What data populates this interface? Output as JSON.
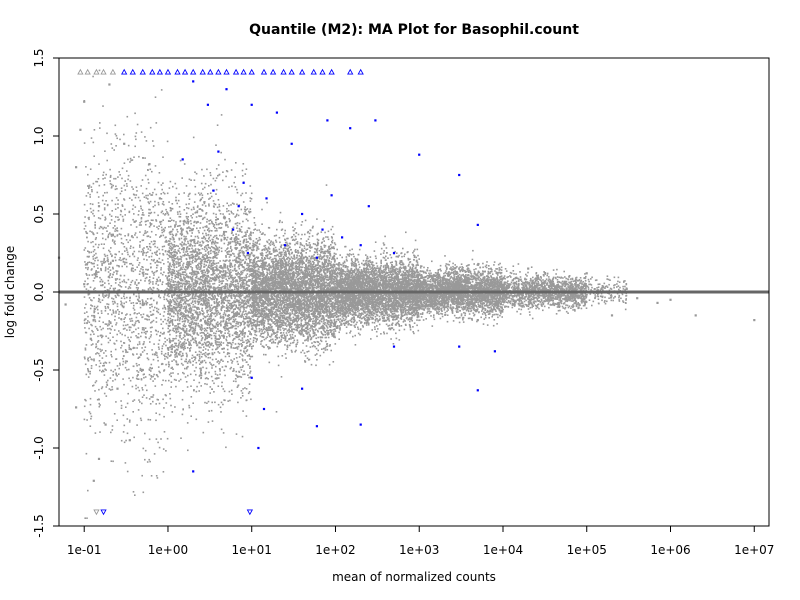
{
  "chart_data": {
    "type": "scatter",
    "title": "Quantile (M2): MA Plot for Basophil.count",
    "xlabel": "mean of normalized counts",
    "ylabel": "log fold change",
    "x_scale": "log10",
    "xlim": [
      0.05,
      15000000
    ],
    "ylim": [
      -1.5,
      1.5
    ],
    "x_ticks": [
      {
        "value": 0.1,
        "label": "1e-01"
      },
      {
        "value": 1,
        "label": "1e+00"
      },
      {
        "value": 10,
        "label": "1e+01"
      },
      {
        "value": 100,
        "label": "1e+02"
      },
      {
        "value": 1000,
        "label": "1e+03"
      },
      {
        "value": 10000,
        "label": "1e+04"
      },
      {
        "value": 100000,
        "label": "1e+05"
      },
      {
        "value": 1000000,
        "label": "1e+06"
      },
      {
        "value": 10000000,
        "label": "1e+07"
      }
    ],
    "y_ticks": [
      {
        "value": -1.5,
        "label": "-1.5"
      },
      {
        "value": -1.0,
        "label": "-1.0"
      },
      {
        "value": -0.5,
        "label": "-0.5"
      },
      {
        "value": 0.0,
        "label": "0.0"
      },
      {
        "value": 0.5,
        "label": "0.5"
      },
      {
        "value": 1.0,
        "label": "1.0"
      },
      {
        "value": 1.5,
        "label": "1.5"
      }
    ],
    "reference_line": {
      "y": 0,
      "color": "#666666"
    },
    "colors": {
      "not_significant": "#999999",
      "significant": "#0000ff"
    },
    "out_of_range_marker": "open triangles at y-limits",
    "grid": false,
    "legend": "none",
    "series": [
      {
        "significance": "not_significant",
        "marker": "point",
        "points": [
          [
            0.05,
            0.22
          ],
          [
            0.06,
            -0.08
          ],
          [
            0.08,
            0.8
          ],
          [
            0.08,
            -0.74
          ],
          [
            0.09,
            1.04
          ],
          [
            0.1,
            1.22
          ],
          [
            0.1,
            0.05
          ],
          [
            0.12,
            -0.3
          ],
          [
            0.13,
            -1.21
          ],
          [
            0.15,
            0.55
          ],
          [
            0.15,
            -1.07
          ],
          [
            0.18,
            -0.85
          ],
          [
            0.2,
            1.33
          ],
          [
            0.22,
            0.2
          ],
          [
            0.25,
            -0.62
          ],
          [
            0.3,
            0.95
          ],
          [
            0.35,
            -0.95
          ],
          [
            0.4,
            0.45
          ],
          [
            0.5,
            -0.5
          ],
          [
            0.6,
            0.82
          ],
          [
            0.7,
            -0.4
          ],
          [
            0.8,
            0.6
          ],
          [
            1.0,
            -0.36
          ],
          [
            1.5,
            0.4
          ],
          [
            2.0,
            -0.3
          ],
          [
            3.0,
            0.3
          ],
          [
            5.0,
            -0.2
          ],
          [
            8.0,
            0.25
          ],
          [
            15,
            -0.15
          ],
          [
            30,
            0.18
          ],
          [
            60,
            -0.12
          ],
          [
            150,
            0.12
          ],
          [
            300,
            -0.1
          ],
          [
            800,
            0.08
          ],
          [
            2000,
            -0.07
          ],
          [
            6000,
            0.06
          ],
          [
            15000,
            -0.05
          ],
          [
            40000,
            0.04
          ],
          [
            80000,
            -0.1
          ],
          [
            150000,
            0.02
          ],
          [
            400000,
            -0.04
          ],
          [
            1000000,
            -0.05
          ],
          [
            2000000,
            -0.15
          ],
          [
            10000000,
            -0.18
          ],
          [
            700000,
            -0.07
          ],
          [
            300000,
            0.02
          ],
          [
            200000,
            -0.15
          ],
          [
            100000,
            0.12
          ],
          [
            20000,
            0.15
          ],
          [
            5000,
            -0.18
          ]
        ]
      },
      {
        "significance": "significant",
        "marker": "point",
        "points": [
          [
            2.0,
            1.35
          ],
          [
            3.0,
            1.2
          ],
          [
            5.0,
            1.3
          ],
          [
            10,
            1.2
          ],
          [
            20,
            1.15
          ],
          [
            30,
            0.95
          ],
          [
            80,
            1.1
          ],
          [
            150,
            1.05
          ],
          [
            300,
            1.1
          ],
          [
            1000,
            0.88
          ],
          [
            3000,
            0.75
          ],
          [
            5000,
            0.43
          ],
          [
            4.0,
            0.9
          ],
          [
            8.0,
            0.7
          ],
          [
            15,
            0.6
          ],
          [
            40,
            0.5
          ],
          [
            70,
            0.4
          ],
          [
            120,
            0.35
          ],
          [
            200,
            0.3
          ],
          [
            500,
            0.25
          ],
          [
            7.0,
            0.55
          ],
          [
            25,
            0.3
          ],
          [
            60,
            0.22
          ],
          [
            10,
            -0.55
          ],
          [
            40,
            -0.62
          ],
          [
            60,
            -0.86
          ],
          [
            200,
            -0.85
          ],
          [
            500,
            -0.35
          ],
          [
            3000,
            -0.35
          ],
          [
            8000,
            -0.38
          ],
          [
            14,
            -0.75
          ],
          [
            12,
            -1.0
          ],
          [
            2.0,
            -1.15
          ],
          [
            5000,
            -0.63
          ],
          [
            1.5,
            0.85
          ],
          [
            3.5,
            0.65
          ],
          [
            6.0,
            0.4
          ],
          [
            9.0,
            0.25
          ],
          [
            90,
            0.62
          ],
          [
            250,
            0.55
          ]
        ]
      },
      {
        "significance": "not_significant",
        "marker": "triangle_up_at_ylim",
        "points": [
          [
            0.09,
            1.5
          ],
          [
            0.11,
            1.5
          ],
          [
            0.14,
            1.5
          ],
          [
            0.17,
            1.5
          ],
          [
            0.22,
            1.5
          ]
        ]
      },
      {
        "significance": "significant",
        "marker": "triangle_up_at_ylim",
        "points": [
          [
            0.3,
            1.5
          ],
          [
            0.38,
            1.5
          ],
          [
            0.5,
            1.5
          ],
          [
            0.65,
            1.5
          ],
          [
            0.8,
            1.5
          ],
          [
            1.0,
            1.5
          ],
          [
            1.3,
            1.5
          ],
          [
            1.6,
            1.5
          ],
          [
            2.0,
            1.5
          ],
          [
            2.6,
            1.5
          ],
          [
            3.2,
            1.5
          ],
          [
            4.0,
            1.5
          ],
          [
            5.0,
            1.5
          ],
          [
            6.5,
            1.5
          ],
          [
            8.0,
            1.5
          ],
          [
            10,
            1.5
          ],
          [
            14,
            1.5
          ],
          [
            18,
            1.5
          ],
          [
            24,
            1.5
          ],
          [
            30,
            1.5
          ],
          [
            40,
            1.5
          ],
          [
            55,
            1.5
          ],
          [
            70,
            1.5
          ],
          [
            90,
            1.5
          ],
          [
            150,
            1.5
          ],
          [
            200,
            1.5
          ]
        ]
      },
      {
        "significance": "not_significant",
        "marker": "triangle_down_at_ylim",
        "points": [
          [
            0.14,
            -1.5
          ]
        ]
      },
      {
        "significance": "significant",
        "marker": "triangle_down_at_ylim",
        "points": [
          [
            0.17,
            -1.5
          ],
          [
            9.5,
            -1.5
          ]
        ]
      }
    ],
    "dense_cloud": {
      "significance": "not_significant",
      "marker": "point",
      "description_of_bulk": "thousands of grey points; spread widest at low counts and narrowing toward zero at high counts",
      "bins": [
        {
          "x_range": [
            0.1,
            1
          ],
          "count": 1500,
          "y_spread": 0.45
        },
        {
          "x_range": [
            1,
            10
          ],
          "count": 3500,
          "y_spread": 0.3
        },
        {
          "x_range": [
            10,
            100
          ],
          "count": 4500,
          "y_spread": 0.16
        },
        {
          "x_range": [
            100,
            1000
          ],
          "count": 4000,
          "y_spread": 0.1
        },
        {
          "x_range": [
            1000,
            10000
          ],
          "count": 3000,
          "y_spread": 0.07
        },
        {
          "x_range": [
            10000,
            100000
          ],
          "count": 1500,
          "y_spread": 0.05
        },
        {
          "x_range": [
            100000,
            300000
          ],
          "count": 150,
          "y_spread": 0.04
        }
      ]
    }
  }
}
